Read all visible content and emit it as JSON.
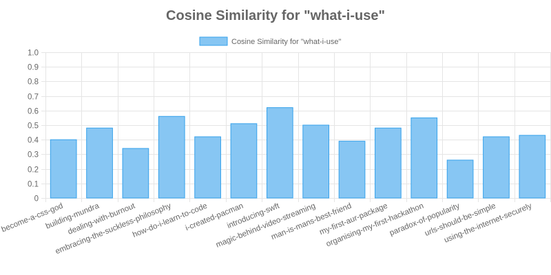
{
  "chart_data": {
    "type": "bar",
    "title": "Cosine Similarity for \"what-i-use\"",
    "series": [
      {
        "name": "Cosine Similarity for \"what-i-use\"",
        "values": [
          0.4,
          0.48,
          0.34,
          0.56,
          0.42,
          0.51,
          0.62,
          0.5,
          0.39,
          0.48,
          0.55,
          0.26,
          0.42,
          0.43
        ]
      }
    ],
    "categories": [
      "become-a-css-god",
      "building-mundra",
      "dealing-with-burnout",
      "embracing-the-suckless-philosophy",
      "how-do-i-learn-to-code",
      "i-created-pacman",
      "introducing-swft",
      "magic-behind-video-streaming",
      "man-is-mans-best-friend",
      "my-first-aur-package",
      "organising-my-first-hackathon",
      "paradox-of-popularity",
      "urls-should-be-simple",
      "using-the-internet-securely"
    ],
    "yticks": [
      "0",
      "0.1",
      "0.2",
      "0.3",
      "0.4",
      "0.5",
      "0.6",
      "0.7",
      "0.8",
      "0.9",
      "1.0"
    ],
    "ylim": [
      0,
      1
    ],
    "xlabel": "",
    "ylabel": "",
    "grid": true,
    "legend_position": "top-center",
    "colors": {
      "bar_fill": "#87c6f3",
      "bar_border": "#36a2eb",
      "grid": "#e5e5e5",
      "text": "#666666"
    }
  }
}
